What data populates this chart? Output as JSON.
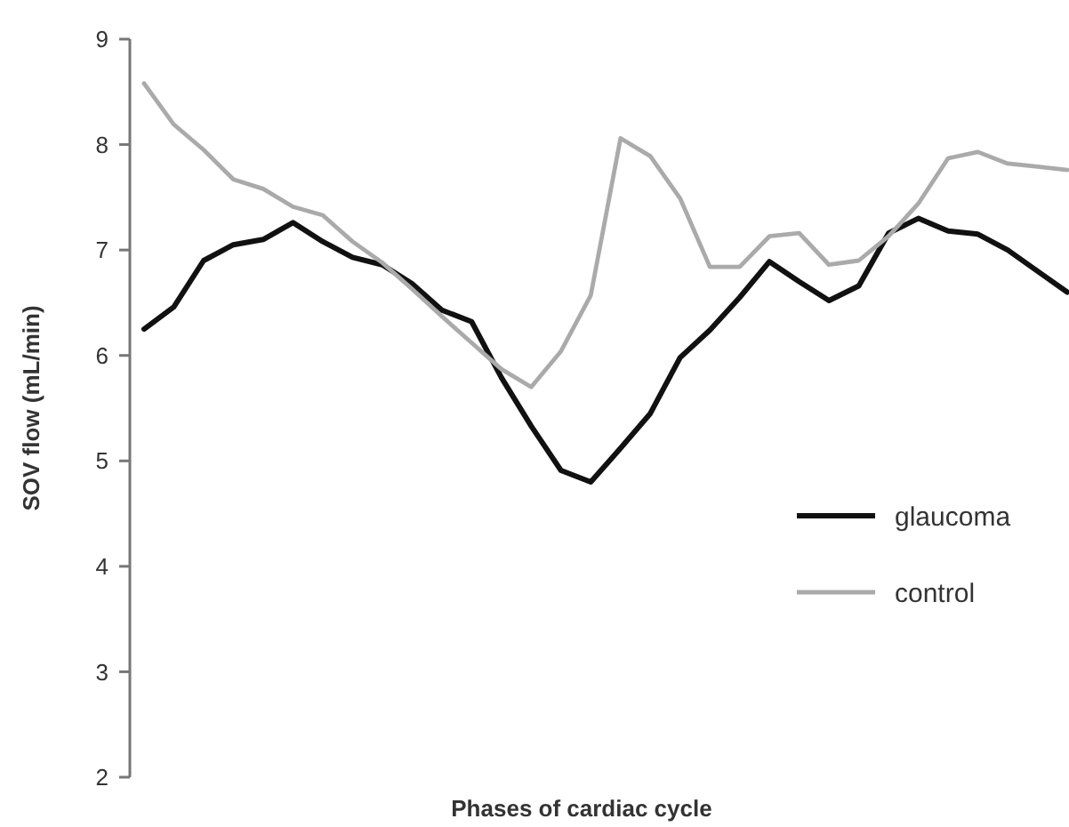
{
  "chart_data": {
    "type": "line",
    "xlabel": "Phases of cardiac cycle",
    "ylabel": "SOV flow (mL/min)",
    "categories": [
      null,
      null,
      null,
      null,
      null,
      null,
      null,
      null,
      null,
      null,
      null,
      null,
      null,
      null,
      null,
      null,
      null,
      null,
      null,
      null,
      null,
      null,
      null,
      null,
      null,
      null,
      null,
      null,
      null,
      null,
      null,
      null
    ],
    "series": [
      {
        "name": "glaucoma",
        "color": "#111111",
        "values": [
          6.25,
          6.46,
          6.9,
          7.05,
          7.1,
          7.26,
          7.08,
          6.93,
          6.86,
          6.68,
          6.43,
          6.32,
          5.79,
          5.33,
          4.91,
          4.8,
          5.12,
          5.45,
          5.98,
          6.24,
          6.55,
          6.89,
          6.7,
          6.52,
          6.66,
          7.16,
          7.3,
          7.18,
          7.15,
          7.0,
          6.8,
          6.6
        ]
      },
      {
        "name": "control",
        "color": "#aaaaaa",
        "values": [
          8.58,
          8.19,
          7.95,
          7.67,
          7.58,
          7.41,
          7.33,
          7.08,
          6.88,
          6.63,
          6.37,
          6.12,
          5.87,
          5.7,
          6.04,
          6.57,
          8.06,
          7.89,
          7.49,
          6.84,
          6.84,
          7.13,
          7.16,
          6.86,
          6.9,
          7.13,
          7.44,
          7.87,
          7.93,
          7.82,
          7.79,
          7.76
        ]
      }
    ],
    "ylim": [
      2,
      9
    ],
    "yticks": [
      2,
      3,
      4,
      5,
      6,
      7,
      8,
      9
    ],
    "grid": false,
    "legend": "right",
    "marker": "none",
    "line_style": "solid"
  }
}
